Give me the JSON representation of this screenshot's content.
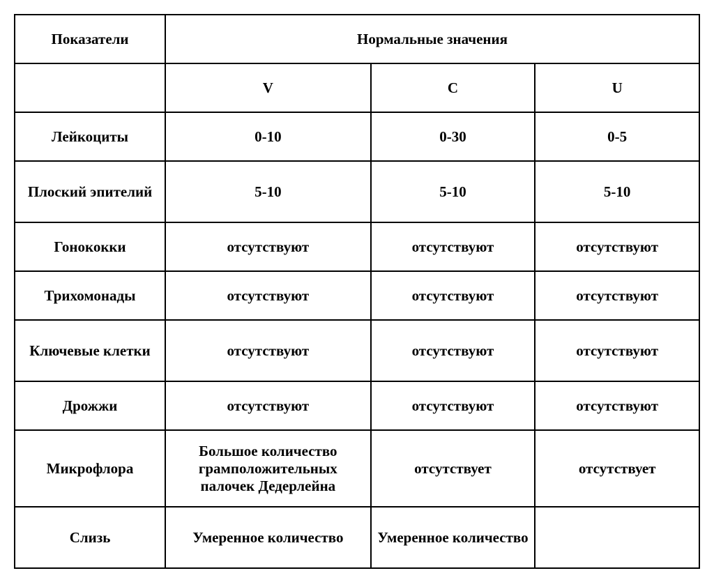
{
  "table": {
    "header": {
      "indicator": "Показатели",
      "normal_values": "Нормальные значения",
      "col_v": "V",
      "col_c": "C",
      "col_u": "U"
    },
    "rows": [
      {
        "label": "Лейкоциты",
        "v": "0-10",
        "c": "0-30",
        "u": "0-5"
      },
      {
        "label": "Плоский эпителий",
        "v": "5-10",
        "c": "5-10",
        "u": "5-10"
      },
      {
        "label": "Гонококки",
        "v": "отсутствуют",
        "c": "отсутствуют",
        "u": "отсутствуют"
      },
      {
        "label": "Трихомонады",
        "v": "отсутствуют",
        "c": "отсутствуют",
        "u": "отсутствуют"
      },
      {
        "label": "Ключевые клетки",
        "v": "отсутствуют",
        "c": "отсутствуют",
        "u": "отсутствуют"
      },
      {
        "label": "Дрожжи",
        "v": "отсутствуют",
        "c": "отсутствуют",
        "u": "отсутствуют"
      },
      {
        "label": "Микрофлора",
        "v": "Большое количество грамположительных палочек Дедерлейна",
        "c": "отсутствует",
        "u": "отсутствует"
      },
      {
        "label": "Слизь",
        "v": "Умеренное количество",
        "c": "Умеренное количество",
        "u": ""
      }
    ],
    "border_color": "#000000",
    "background_color": "#ffffff",
    "font_family": "Times New Roman",
    "font_size": 21,
    "font_weight": "bold"
  }
}
